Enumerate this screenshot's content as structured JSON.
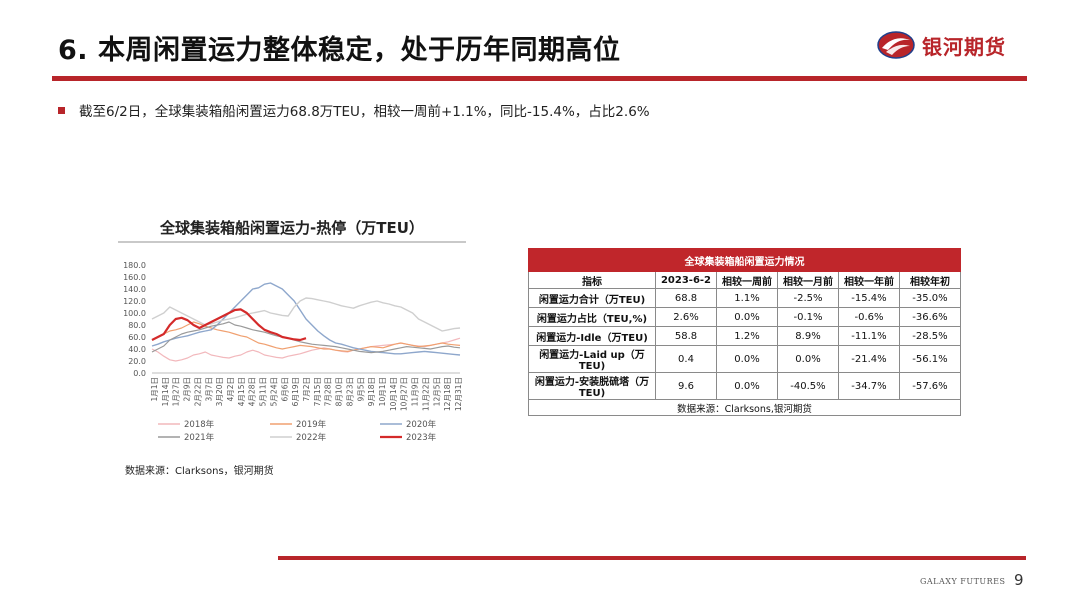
{
  "slide": {
    "title": "6. 本周闲置运力整体稳定，处于历年同期高位",
    "bullet": "截至6/2日，全球集装箱船闲置运力68.8万TEU，相较一周前+1.1%，同比-15.4%，占比2.6%",
    "logo_text": "银河期货",
    "footer_brand": "GALAXY FUTURES",
    "page_number": "9",
    "accent_color": "#b8252a"
  },
  "chart_data": {
    "type": "line",
    "title": "全球集装箱船闲置运力-热停（万TEU）",
    "source": "数据来源：Clarksons，银河期货",
    "ylim": [
      0,
      180
    ],
    "yticks": [
      "180.0",
      "160.0",
      "140.0",
      "120.0",
      "100.0",
      "80.0",
      "60.0",
      "40.0",
      "20.0",
      "0.0"
    ],
    "xlim": [
      1,
      53
    ],
    "x_tick_labels": [
      "1月1日",
      "1月14日",
      "1月27日",
      "2月9日",
      "2月22日",
      "3月7日",
      "3月20日",
      "4月2日",
      "4月15日",
      "4月28日",
      "5月11日",
      "5月24日",
      "6月6日",
      "6月19日",
      "7月2日",
      "7月15日",
      "7月28日",
      "8月10日",
      "8月23日",
      "9月5日",
      "9月18日",
      "10月1日",
      "10月14日",
      "10月27日",
      "11月9日",
      "11月22日",
      "12月5日",
      "12月18日",
      "12月31日"
    ],
    "legend": "bottom",
    "series": [
      {
        "name": "2018年",
        "color": "#f2b8bc",
        "width": 1.2,
        "values": [
          40,
          35,
          28,
          22,
          20,
          22,
          25,
          30,
          32,
          35,
          30,
          28,
          26,
          25,
          28,
          30,
          35,
          38,
          35,
          30,
          28,
          26,
          25,
          28,
          30,
          32,
          35,
          38,
          40,
          42,
          40,
          38,
          36,
          35,
          38,
          40,
          42,
          44,
          45,
          46,
          47,
          48,
          50,
          48,
          46,
          45,
          44,
          46,
          48,
          50,
          52,
          55,
          58
        ]
      },
      {
        "name": "2019年",
        "color": "#f0a070",
        "width": 1.2,
        "values": [
          55,
          60,
          65,
          70,
          72,
          75,
          80,
          85,
          82,
          78,
          75,
          72,
          70,
          68,
          65,
          62,
          60,
          55,
          50,
          48,
          45,
          42,
          40,
          42,
          44,
          46,
          45,
          44,
          42,
          40,
          40,
          38,
          37,
          36,
          38,
          40,
          42,
          44,
          43,
          42,
          45,
          48,
          50,
          48,
          46,
          44,
          45,
          46,
          48,
          50,
          48,
          47,
          46
        ]
      },
      {
        "name": "2020年",
        "color": "#8ea7cc",
        "width": 1.4,
        "values": [
          45,
          48,
          52,
          55,
          58,
          60,
          62,
          65,
          68,
          70,
          72,
          80,
          90,
          100,
          110,
          120,
          130,
          140,
          142,
          148,
          150,
          145,
          140,
          130,
          120,
          105,
          90,
          80,
          70,
          62,
          55,
          50,
          48,
          45,
          42,
          40,
          38,
          36,
          35,
          34,
          33,
          32,
          32,
          33,
          34,
          35,
          36,
          35,
          34,
          33,
          32,
          31,
          30
        ]
      },
      {
        "name": "2021年",
        "color": "#9a9a9a",
        "width": 1.2,
        "values": [
          35,
          40,
          45,
          55,
          60,
          65,
          68,
          70,
          72,
          75,
          78,
          80,
          82,
          85,
          80,
          78,
          75,
          72,
          70,
          68,
          65,
          62,
          60,
          58,
          55,
          52,
          50,
          48,
          47,
          46,
          45,
          44,
          42,
          40,
          38,
          36,
          35,
          34,
          35,
          36,
          38,
          40,
          42,
          44,
          43,
          42,
          41,
          40,
          42,
          44,
          45,
          43,
          42
        ]
      },
      {
        "name": "2022年",
        "color": "#cfcfcf",
        "width": 1.4,
        "values": [
          90,
          95,
          100,
          110,
          105,
          100,
          95,
          90,
          85,
          80,
          82,
          85,
          88,
          90,
          92,
          95,
          98,
          100,
          102,
          104,
          100,
          98,
          96,
          95,
          110,
          120,
          125,
          124,
          122,
          120,
          118,
          115,
          112,
          110,
          108,
          112,
          115,
          118,
          120,
          117,
          115,
          112,
          110,
          105,
          100,
          90,
          85,
          80,
          75,
          70,
          72,
          74,
          75
        ]
      },
      {
        "name": "2023年",
        "color": "#d42a2a",
        "width": 2.2,
        "values": [
          55,
          60,
          65,
          80,
          90,
          92,
          88,
          80,
          75,
          80,
          85,
          90,
          95,
          100,
          105,
          106,
          100,
          90,
          80,
          72,
          68,
          65,
          60,
          58,
          56,
          55,
          58
        ]
      }
    ]
  },
  "table": {
    "title": "全球集装箱船闲置运力情况",
    "columns": [
      "指标",
      "2023-6-2",
      "相较一周前",
      "相较一月前",
      "相较一年前",
      "相较年初"
    ],
    "rows": [
      [
        "闲置运力合计（万TEU)",
        "68.8",
        "1.1%",
        "-2.5%",
        "-15.4%",
        "-35.0%"
      ],
      [
        "闲置运力占比（TEU,%)",
        "2.6%",
        "0.0%",
        "-0.1%",
        "-0.6%",
        "-36.6%"
      ],
      [
        "闲置运力-Idle（万TEU)",
        "58.8",
        "1.2%",
        "8.9%",
        "-11.1%",
        "-28.5%"
      ],
      [
        "闲置运力-Laid up（万TEU)",
        "0.4",
        "0.0%",
        "0.0%",
        "-21.4%",
        "-56.1%"
      ],
      [
        "闲置运力-安装脱硫塔（万TEU)",
        "9.6",
        "0.0%",
        "-40.5%",
        "-34.7%",
        "-57.6%"
      ]
    ],
    "source": "数据来源：Clarksons,银河期货"
  }
}
